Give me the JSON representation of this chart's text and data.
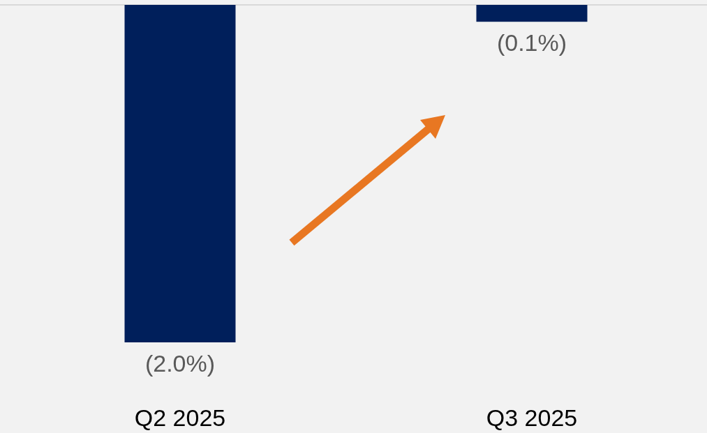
{
  "chart_data": {
    "type": "bar",
    "categories": [
      "Q2 2025",
      "Q3 2025"
    ],
    "values": [
      -2.0,
      -0.1
    ],
    "color": "#001f5b",
    "value_labels": [
      "(2.0%)",
      "(0.1%)"
    ]
  }
}
